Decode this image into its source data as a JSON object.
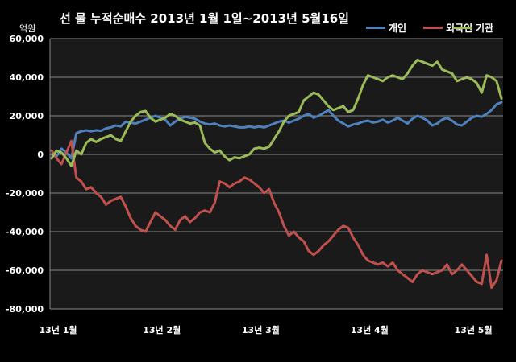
{
  "chart_data": {
    "type": "line",
    "title": "선 물 누적순매수 2013년 1월 1일~2013년 5월16일",
    "ylabel": "억원",
    "xlabel": "",
    "ylim": [
      -80000,
      60000
    ],
    "yticks": [
      "60,000",
      "40,000",
      "20,000",
      "0",
      "-20,000",
      "-40,000",
      "-60,000",
      "-80,000"
    ],
    "ytick_values": [
      60000,
      40000,
      20000,
      0,
      -20000,
      -40000,
      -60000,
      -80000
    ],
    "x_tick_labels": [
      "13년 1월",
      "13년 2월",
      "13년 3월",
      "13년 4월",
      "13년 5월"
    ],
    "x_tick_index": [
      0,
      21,
      41,
      63,
      84
    ],
    "x_count": 92,
    "grid": true,
    "legend": "top-right",
    "series": [
      {
        "name": "개인",
        "color": "#4F81BD",
        "values": [
          0,
          -1000,
          3000,
          1000,
          -2000,
          11000,
          12000,
          12500,
          12000,
          12500,
          12300,
          13500,
          14000,
          15000,
          14500,
          17000,
          16500,
          16000,
          17000,
          18000,
          19000,
          20000,
          19000,
          18000,
          15000,
          17000,
          18500,
          19500,
          19000,
          18500,
          17000,
          16000,
          15500,
          16000,
          15000,
          14500,
          15000,
          14500,
          14000,
          14000,
          14500,
          14000,
          14500,
          14000,
          15000,
          16000,
          17000,
          17500,
          16500,
          17500,
          18500,
          20000,
          21000,
          19000,
          20000,
          21500,
          23000,
          20000,
          17500,
          16000,
          14500,
          15500,
          16000,
          17000,
          17500,
          16500,
          17000,
          18000,
          16500,
          17500,
          19000,
          17500,
          16000,
          18500,
          20000,
          19000,
          17500,
          15000,
          16000,
          18000,
          19000,
          17500,
          15500,
          15000,
          17000,
          19000,
          20000,
          19500,
          21000,
          23000,
          26000,
          27000
        ]
      },
      {
        "name": "외국인",
        "color": "#C0504D",
        "values": [
          2000,
          -2000,
          -5000,
          1000,
          7000,
          -12000,
          -14000,
          -18000,
          -17000,
          -20000,
          -22000,
          -26000,
          -24000,
          -23000,
          -22000,
          -27000,
          -33000,
          -37000,
          -39000,
          -40000,
          -35000,
          -30000,
          -32000,
          -34000,
          -37000,
          -39000,
          -34000,
          -32000,
          -35000,
          -33000,
          -30000,
          -29000,
          -30000,
          -25000,
          -14000,
          -15000,
          -17000,
          -15000,
          -14000,
          -12000,
          -13000,
          -15000,
          -17000,
          -20000,
          -18000,
          -25000,
          -30000,
          -37000,
          -42000,
          -40000,
          -43000,
          -45000,
          -50000,
          -52000,
          -50000,
          -47000,
          -45000,
          -42000,
          -39000,
          -37000,
          -38000,
          -43000,
          -47000,
          -52000,
          -55000,
          -56000,
          -57000,
          -56000,
          -58000,
          -56000,
          -60000,
          -62000,
          -64000,
          -66000,
          -62000,
          -60000,
          -61000,
          -62000,
          -61000,
          -60000,
          -57000,
          -62000,
          -60000,
          -57000,
          -60000,
          -63000,
          -66000,
          -67000,
          -52000,
          -69000,
          -65000,
          -55000
        ]
      },
      {
        "name": "기관",
        "color": "#9BBB59",
        "values": [
          -2000,
          2000,
          1000,
          -2000,
          -6000,
          2000,
          0,
          6000,
          8000,
          6500,
          8000,
          9000,
          10000,
          8000,
          7000,
          12000,
          17000,
          20000,
          22000,
          22500,
          19000,
          17000,
          18000,
          19000,
          21000,
          20000,
          18000,
          17000,
          16000,
          16500,
          15000,
          6000,
          3000,
          1000,
          2000,
          -1000,
          -3000,
          -1500,
          -2000,
          -1000,
          0,
          3000,
          3500,
          3000,
          4000,
          8000,
          12000,
          17000,
          20000,
          21000,
          22000,
          28000,
          30000,
          32000,
          31000,
          28000,
          25000,
          23000,
          24000,
          25000,
          22000,
          23000,
          29000,
          36000,
          41000,
          40000,
          39000,
          38000,
          40000,
          41000,
          40000,
          39000,
          42000,
          46000,
          49000,
          48000,
          47000,
          46000,
          48000,
          44000,
          43000,
          42000,
          38000,
          39000,
          40000,
          39000,
          37000,
          32000,
          41000,
          40000,
          38000,
          29000
        ]
      }
    ]
  }
}
